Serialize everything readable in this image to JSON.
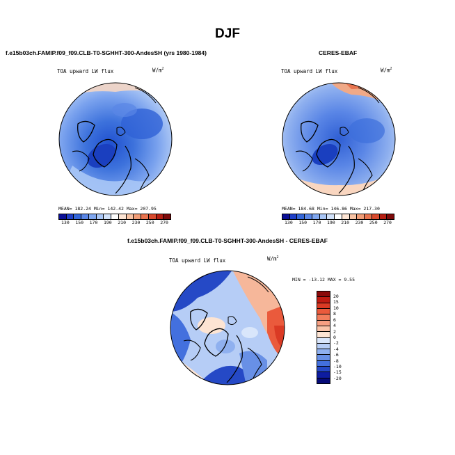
{
  "season": "DJF",
  "panel_top_left": {
    "title": "f.e15b03ch.FAMIP.f09_f09.CLB-T0-SGHHT-300-AndesSH (yrs 1980-1984)",
    "variable": "TOA upward LW flux",
    "units_base": "W/m",
    "units_exp": "2",
    "stats": "MEAN= 182.24  Min= 142.42  Max= 207.95"
  },
  "panel_top_right": {
    "title": "CERES-EBAF",
    "variable": "TOA upward LW flux",
    "units_base": "W/m",
    "units_exp": "2",
    "stats": "MEAN= 184.68  Min= 146.86  Max= 217.30"
  },
  "abs_colorbar": {
    "ticks": [
      "130",
      "150",
      "170",
      "190",
      "210",
      "230",
      "250",
      "270"
    ],
    "colors": [
      "#0a0f96",
      "#1f3fc8",
      "#3366d9",
      "#5a86e6",
      "#80a7ef",
      "#a9c6f6",
      "#d2e2fa",
      "#ffffff",
      "#fde5d4",
      "#f8c3a4",
      "#f19d77",
      "#e8744f",
      "#d84a2e",
      "#b51e12",
      "#7d0a0a"
    ]
  },
  "panel_diff": {
    "title": "f.e15b03ch.FAMIP.f09_f09.CLB-T0-SGHHT-300-AndesSH - CERES-EBAF",
    "variable": "TOA upward LW flux",
    "units_base": "W/m",
    "units_exp": "2",
    "stats": "MIN = -13.12  MAX =   9.55"
  },
  "diff_colorbar": {
    "ticks": [
      "20",
      "15",
      "10",
      "8",
      "6",
      "4",
      "2",
      "0",
      "-2",
      "-4",
      "-6",
      "-8",
      "-10",
      "-15",
      "-20"
    ],
    "colors": [
      "#8b0a0a",
      "#c01b12",
      "#da3a24",
      "#ea5a3c",
      "#f27d5c",
      "#f69f82",
      "#f9c3a8",
      "#fde4d3",
      "#d9e6fb",
      "#b6cdf6",
      "#8fb0ef",
      "#6890e6",
      "#4370de",
      "#2549c6",
      "#0d1ca0",
      "#050a78"
    ]
  }
}
